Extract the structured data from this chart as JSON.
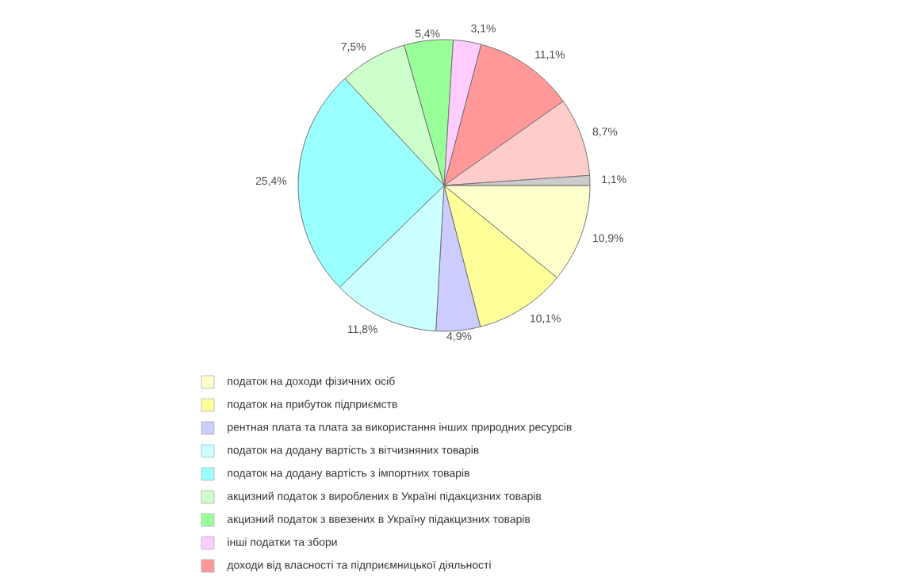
{
  "chart_data": {
    "type": "pie",
    "categories": [
      "податок на доходи фізичних осіб",
      "податок на прибуток підприємств",
      "рентная плата та плата за використання інших природних ресурсів",
      "податок на додану вартість з вітчизняних товарів",
      "податок на додану вартість з імпортних товарів",
      "акцизний податок з вироблених в Україні підакцизних товарів",
      "акцизний податок з ввезених в Україну підакцизних товарів",
      "інші податки та збори",
      "доходи від власності та підприємницької діяльності",
      null,
      null
    ],
    "values": [
      10.9,
      10.1,
      4.9,
      11.8,
      25.4,
      7.5,
      5.4,
      3.1,
      11.1,
      8.7,
      1.1
    ],
    "value_labels": [
      "10,9%",
      "10,1%",
      "4,9%",
      "11,8%",
      "25,4%",
      "7,5%",
      "5,4%",
      "3,1%",
      "11,1%",
      "8,7%",
      "1,1%"
    ],
    "colors": [
      "#ffffcc",
      "#ffff99",
      "#ccccff",
      "#ccffff",
      "#99ffff",
      "#ccffcc",
      "#99ff99",
      "#ffccff",
      "#ff9999",
      "#ffcccc",
      "#cccccc"
    ],
    "legend": "bottom"
  }
}
